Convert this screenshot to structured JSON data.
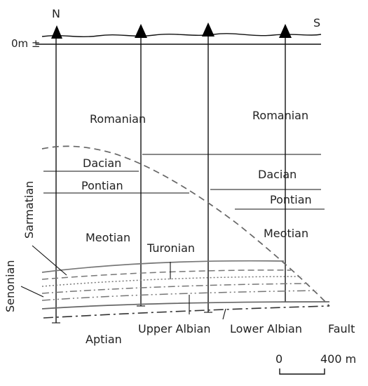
{
  "orientation": {
    "north": "N",
    "south": "S"
  },
  "datum": "0m ±",
  "formations": {
    "romanian_left": "Romanian",
    "romanian_right": "Romanian",
    "dacian_left": "Dacian",
    "dacian_right": "Dacian",
    "pontian_left": "Pontian",
    "pontian_right": "Pontian",
    "meotian_left": "Meotian",
    "meotian_right": "Meotian",
    "sarmatian": "Sarmatian",
    "turonian": "Turonian",
    "senonian": "Senonian",
    "aptian": "Aptian",
    "upper_albian": "Upper Albian",
    "lower_albian": "Lower Albian",
    "fault": "Fault"
  },
  "scale": {
    "start": "0",
    "end": "400 m"
  }
}
